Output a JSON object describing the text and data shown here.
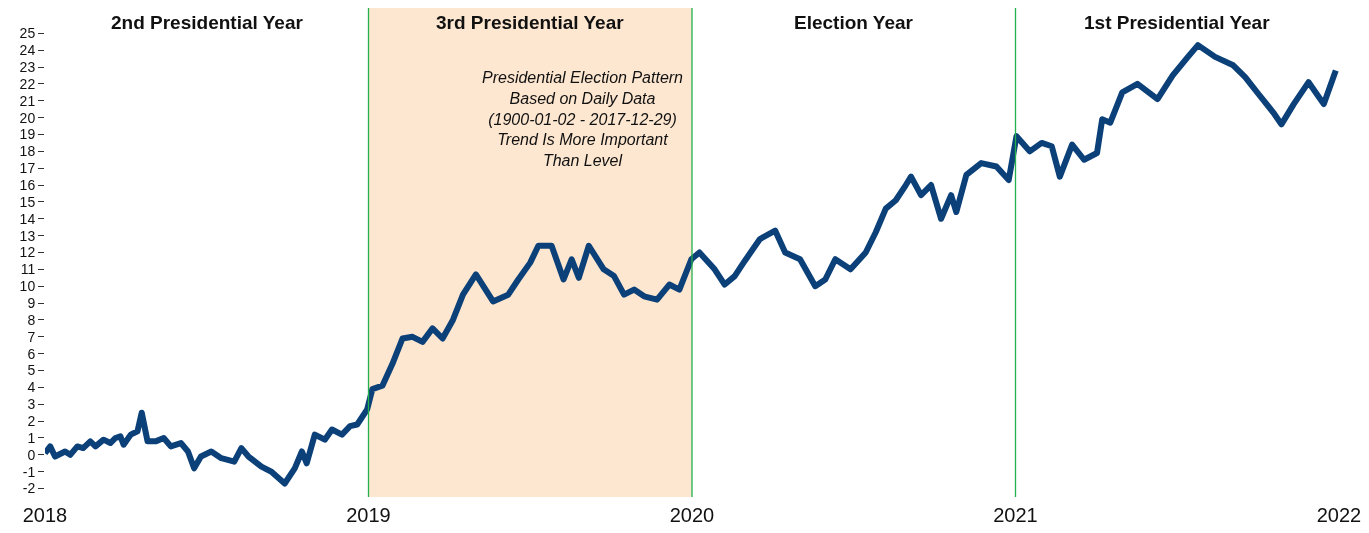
{
  "chart_data": {
    "type": "line",
    "x": [
      2018.0,
      2018.016,
      2018.031,
      2018.062,
      2018.078,
      2018.1,
      2018.118,
      2018.14,
      2018.156,
      2018.181,
      2018.202,
      2018.218,
      2018.233,
      2018.243,
      2018.265,
      2018.286,
      2018.299,
      2018.317,
      2018.342,
      2018.367,
      2018.389,
      2018.42,
      2018.442,
      2018.461,
      2018.482,
      2018.514,
      2018.545,
      2018.585,
      2018.607,
      2018.629,
      2018.669,
      2018.7,
      2018.741,
      2018.772,
      2018.794,
      2018.809,
      2018.834,
      2018.865,
      2018.887,
      2018.918,
      2018.943,
      2018.965,
      2018.996,
      2019.012,
      2019.043,
      2019.074,
      2019.105,
      2019.136,
      2019.167,
      2019.198,
      2019.229,
      2019.261,
      2019.292,
      2019.332,
      2019.385,
      2019.432,
      2019.463,
      2019.5,
      2019.525,
      2019.566,
      2019.603,
      2019.628,
      2019.65,
      2019.681,
      2019.727,
      2019.759,
      2019.79,
      2019.821,
      2019.852,
      2019.892,
      2019.93,
      2019.961,
      2019.998,
      2020.023,
      2020.07,
      2020.101,
      2020.132,
      2020.163,
      2020.21,
      2020.257,
      2020.288,
      2020.334,
      2020.381,
      2020.412,
      2020.443,
      2020.49,
      2020.537,
      2020.568,
      2020.599,
      2020.63,
      2020.661,
      2020.677,
      2020.708,
      2020.739,
      2020.77,
      2020.801,
      2020.817,
      2020.848,
      2020.894,
      2020.941,
      2020.979,
      2021.003,
      2021.044,
      2021.081,
      2021.112,
      2021.137,
      2021.175,
      2021.212,
      2021.252,
      2021.268,
      2021.293,
      2021.33,
      2021.377,
      2021.439,
      2021.486,
      2021.533,
      2021.564,
      2021.617,
      2021.673,
      2021.71,
      2021.751,
      2021.797,
      2021.822,
      2021.86,
      2021.906,
      2021.953,
      2021.99
    ],
    "series": [
      {
        "color": "#0b4079",
        "values": [
          0.1,
          0.5,
          -0.1,
          0.2,
          0.0,
          0.5,
          0.4,
          0.8,
          0.5,
          0.9,
          0.7,
          1.0,
          1.1,
          0.6,
          1.2,
          1.4,
          2.5,
          0.8,
          0.8,
          1.0,
          0.5,
          0.7,
          0.2,
          -0.8,
          -0.1,
          0.2,
          -0.2,
          -0.4,
          0.4,
          -0.1,
          -0.7,
          -1.0,
          -1.7,
          -0.8,
          0.2,
          -0.5,
          1.2,
          0.9,
          1.5,
          1.2,
          1.7,
          1.8,
          2.7,
          3.9,
          4.1,
          5.4,
          6.9,
          7.0,
          6.7,
          7.5,
          6.9,
          8.0,
          9.5,
          10.7,
          9.1,
          9.5,
          10.4,
          11.4,
          12.4,
          12.4,
          10.4,
          11.6,
          10.5,
          12.4,
          11.0,
          10.6,
          9.5,
          9.8,
          9.4,
          9.2,
          10.1,
          9.8,
          11.6,
          12.0,
          11.0,
          10.1,
          10.6,
          11.5,
          12.8,
          13.3,
          12.0,
          11.6,
          10.0,
          10.4,
          11.6,
          11.0,
          12.0,
          13.2,
          14.6,
          15.1,
          16.0,
          16.5,
          15.4,
          16.0,
          14.0,
          15.4,
          14.4,
          16.6,
          17.3,
          17.1,
          16.3,
          18.9,
          18.0,
          18.5,
          18.3,
          16.5,
          18.4,
          17.5,
          17.9,
          19.9,
          19.7,
          21.5,
          22.0,
          21.1,
          22.5,
          23.6,
          24.3,
          23.6,
          23.1,
          22.4,
          21.4,
          20.3,
          19.6,
          20.8,
          22.1,
          20.8,
          22.8
        ]
      }
    ],
    "xlim": [
      2018,
      2022
    ],
    "xticks": [
      2018,
      2019,
      2020,
      2021,
      2022
    ],
    "ylim": [
      -2.5,
      26.5
    ],
    "yticks": [
      -2,
      -1,
      0,
      1,
      2,
      3,
      4,
      5,
      6,
      7,
      8,
      9,
      10,
      11,
      12,
      13,
      14,
      15,
      16,
      17,
      18,
      19,
      20,
      21,
      22,
      23,
      24,
      25
    ],
    "bands": [
      {
        "axis": "x",
        "from": 2019,
        "to": 2020,
        "color": "#fde7d0"
      }
    ],
    "ref_lines": [
      {
        "axis": "x",
        "value": 2019,
        "color": "#22b14c"
      },
      {
        "axis": "x",
        "value": 2020,
        "color": "#22b14c"
      },
      {
        "axis": "x",
        "value": 2021,
        "color": "#22b14c"
      }
    ],
    "annotations": [
      "2nd Presidential Year",
      "3rd Presidential Year",
      "Election Year",
      "1st Presidential Year",
      "Presidential Election Pattern\nBased on Daily Data\n(1900-01-02 - 2017-12-29)\nTrend Is More Important\nThan Level"
    ],
    "grid": false,
    "line_style": "solid",
    "marker": "none"
  }
}
